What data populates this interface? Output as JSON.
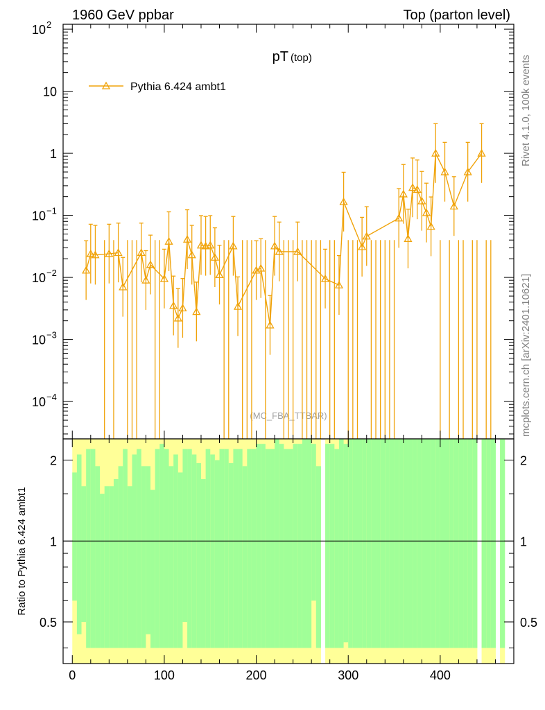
{
  "header": {
    "left": "1960 GeV ppbar",
    "right": "Top (parton level)"
  },
  "side": {
    "rivet": "Rivet 4.1.0,  100k events",
    "mcplots": "mcplots.cern.ch [arXiv:2401.10621]"
  },
  "chart_data": [
    {
      "type": "line",
      "title": "pT",
      "title_sub": "(top)",
      "watermark": "(MC_FBA_TTBAR)",
      "yscale": "log",
      "ylim": [
        2.5e-05,
        120
      ],
      "xlim": [
        -10,
        480
      ],
      "y_ticks": [
        {
          "v": 0.0001,
          "base": "10",
          "exp": "−4"
        },
        {
          "v": 0.001,
          "base": "10",
          "exp": "−3"
        },
        {
          "v": 0.01,
          "base": "10",
          "exp": "−2"
        },
        {
          "v": 0.1,
          "base": "10",
          "exp": "−1"
        },
        {
          "v": 1,
          "base": "1",
          "exp": ""
        },
        {
          "v": 10,
          "base": "10",
          "exp": ""
        },
        {
          "v": 100,
          "base": "10",
          "exp": "2"
        }
      ],
      "legend": "Pythia 6.424 ambt1",
      "color": "#f0a30a",
      "series": [
        {
          "name": "Pythia 6.424 ambt1",
          "points": [
            [
              15,
              0.013
            ],
            [
              20,
              0.024
            ],
            [
              25,
              0.023
            ],
            [
              40,
              0.024
            ],
            [
              50,
              0.025
            ],
            [
              55,
              0.007
            ],
            [
              75,
              0.025
            ],
            [
              80,
              0.009
            ],
            [
              85,
              0.016
            ],
            [
              100,
              0.0095
            ],
            [
              105,
              0.038
            ],
            [
              110,
              0.0035
            ],
            [
              115,
              0.0022
            ],
            [
              120,
              0.0032
            ],
            [
              125,
              0.041
            ],
            [
              130,
              0.023
            ],
            [
              135,
              0.0028
            ],
            [
              140,
              0.033
            ],
            [
              145,
              0.032
            ],
            [
              150,
              0.033
            ],
            [
              155,
              0.021
            ],
            [
              160,
              0.011
            ],
            [
              175,
              0.032
            ],
            [
              180,
              0.0034
            ],
            [
              200,
              0.013
            ],
            [
              205,
              0.014
            ],
            [
              215,
              0.0017
            ],
            [
              220,
              0.032
            ],
            [
              225,
              0.026
            ],
            [
              245,
              0.026
            ],
            [
              275,
              0.0095
            ],
            [
              290,
              0.0075
            ],
            [
              295,
              0.165
            ],
            [
              315,
              0.031
            ],
            [
              320,
              0.046
            ],
            [
              355,
              0.09
            ],
            [
              360,
              0.22
            ],
            [
              365,
              0.042
            ],
            [
              370,
              0.28
            ],
            [
              375,
              0.26
            ],
            [
              380,
              0.17
            ],
            [
              385,
              0.11
            ],
            [
              390,
              0.066
            ],
            [
              395,
              1.0
            ],
            [
              405,
              0.5
            ],
            [
              415,
              0.14
            ],
            [
              430,
              0.5
            ],
            [
              445,
              1.0
            ]
          ],
          "drop_x": [
            35,
            45,
            60,
            65,
            70,
            90,
            95,
            165,
            170,
            185,
            190,
            195,
            210,
            230,
            235,
            240,
            250,
            255,
            260,
            265,
            270,
            280,
            285,
            300,
            305,
            310,
            325,
            330,
            335,
            340,
            345,
            350,
            400,
            410,
            420,
            425,
            435,
            440,
            450,
            455
          ]
        }
      ]
    },
    {
      "type": "bar",
      "ylabel": "Ratio to Pythia 6.424 ambt1",
      "xlim": [
        -10,
        480
      ],
      "ylim": [
        0.35,
        2.4
      ],
      "yscale": "log",
      "y_ticks": [
        {
          "v": 0.5,
          "label": "0.5"
        },
        {
          "v": 1,
          "label": "1"
        },
        {
          "v": 2,
          "label": "2"
        }
      ],
      "x_ticks": [
        {
          "v": 0,
          "label": "0"
        },
        {
          "v": 100,
          "label": "100"
        },
        {
          "v": 200,
          "label": "200"
        },
        {
          "v": 300,
          "label": "300"
        },
        {
          "v": 400,
          "label": "400"
        }
      ],
      "reference": 1,
      "bin_width": 5,
      "bin_start": 0,
      "green": "#a0ff98",
      "yellow": "#ffff98",
      "white_bins": [
        270,
        440,
        460
      ],
      "green_lo": [
        0.6,
        0.45,
        0.5,
        0.4,
        0.4,
        0.4,
        0.4,
        0.4,
        0.4,
        0.4,
        0.4,
        0.4,
        0.4,
        0.4,
        0.4,
        0.4,
        0.45,
        0.4,
        0.4,
        0.4,
        0.4,
        0.4,
        0.4,
        0.4,
        0.5,
        0.4,
        0.4,
        0.4,
        0.4,
        0.4,
        0.4,
        0.4,
        0.4,
        0.4,
        0.4,
        0.4,
        0.4,
        0.4,
        0.4,
        0.4,
        0.4,
        0.4,
        0.4,
        0.4,
        0.4,
        0.4,
        0.4,
        0.4,
        0.4,
        0.4,
        0.4,
        0.4,
        0.6,
        0.4,
        0.4,
        0.4,
        0.4,
        0.4,
        0.4,
        0.42,
        0.4,
        0.4,
        0.4,
        0.4,
        0.4,
        0.4,
        0.4,
        0.4,
        0.4,
        0.4,
        0.4,
        0.4,
        0.4,
        0.4,
        0.4,
        0.4,
        0.4,
        0.4,
        0.4,
        0.4,
        0.4,
        0.4,
        0.4,
        0.4,
        0.4,
        0.4,
        0.4,
        0.4,
        0.4,
        0.4,
        0.4,
        0.4,
        0.4,
        0.4
      ],
      "green_hi": [
        1.8,
        2.1,
        1.6,
        2.2,
        2.2,
        1.9,
        1.5,
        1.6,
        1.6,
        1.7,
        1.9,
        2.2,
        1.6,
        2.1,
        2.2,
        1.9,
        1.9,
        1.55,
        2.2,
        2.3,
        2.2,
        1.9,
        2.1,
        1.8,
        2.2,
        2.2,
        2.1,
        1.95,
        1.7,
        2.2,
        2.1,
        2.0,
        2.2,
        2.2,
        1.95,
        2.2,
        2.2,
        1.9,
        2.2,
        2.2,
        2.3,
        2.3,
        2.2,
        2.2,
        2.4,
        2.3,
        2.2,
        2.2,
        2.3,
        2.3,
        2.4,
        2.4,
        2.3,
        1.9,
        2.4,
        2.3,
        2.3,
        2.2,
        2.4,
        2.3,
        2.4,
        2.4,
        2.4,
        2.4,
        2.4,
        2.4,
        2.4,
        2.4,
        2.4,
        2.4,
        2.4,
        2.4,
        2.4,
        2.4,
        2.4,
        2.4,
        2.4,
        2.4,
        2.4,
        2.4,
        2.4,
        2.4,
        2.4,
        2.4,
        2.4,
        2.4,
        2.4,
        2.4,
        2.4,
        2.4,
        2.4,
        2.4,
        2.4,
        2.4
      ],
      "yellow_lo": [
        0.35,
        0.35,
        0.35,
        0.35,
        0.35,
        0.35,
        0.35,
        0.35,
        0.35,
        0.35,
        0.35,
        0.35,
        0.35,
        0.35,
        0.35,
        0.35,
        0.35,
        0.35,
        0.35,
        0.35,
        0.35,
        0.35,
        0.35,
        0.35,
        0.35,
        0.35,
        0.35,
        0.35,
        0.35,
        0.35,
        0.35,
        0.35,
        0.35,
        0.35,
        0.35,
        0.35,
        0.35,
        0.35,
        0.35,
        0.35,
        0.35,
        0.35,
        0.35,
        0.35,
        0.35,
        0.35,
        0.35,
        0.35,
        0.35,
        0.35,
        0.35,
        0.35,
        0.35,
        0.35,
        0.35,
        0.35,
        0.35,
        0.35,
        0.35,
        0.35,
        0.35,
        0.35,
        0.35,
        0.35,
        0.35,
        0.35,
        0.35,
        0.35,
        0.35,
        0.35,
        0.35,
        0.35,
        0.35,
        0.35,
        0.35,
        0.35,
        0.35,
        0.35,
        0.35,
        0.35,
        0.35,
        0.35,
        0.35,
        0.35,
        0.35,
        0.35,
        0.35,
        0.35,
        0.35,
        0.35,
        0.35,
        0.35,
        0.35,
        0.35
      ],
      "yellow_hi": [
        2.4,
        2.4,
        2.4,
        2.4,
        2.4,
        2.4,
        2.4,
        2.4,
        2.4,
        2.4,
        2.4,
        2.4,
        2.4,
        2.4,
        2.4,
        2.4,
        2.4,
        2.4,
        2.4,
        2.4,
        2.4,
        2.4,
        2.4,
        2.4,
        2.4,
        2.4,
        2.4,
        2.4,
        2.4,
        2.4,
        2.4,
        2.4,
        2.4,
        2.4,
        2.4,
        2.4,
        2.4,
        2.4,
        2.4,
        2.4,
        2.4,
        2.4,
        2.4,
        2.4,
        2.4,
        2.4,
        2.4,
        2.4,
        2.4,
        2.4,
        2.4,
        2.4,
        2.4,
        2.4,
        2.4,
        2.4,
        2.4,
        2.4,
        2.4,
        2.4,
        2.4,
        2.4,
        2.4,
        2.4,
        2.4,
        2.4,
        2.4,
        2.4,
        2.4,
        2.4,
        2.4,
        2.4,
        2.4,
        2.4,
        2.4,
        2.4,
        2.4,
        2.4,
        2.4,
        2.4,
        2.4,
        2.4,
        2.4,
        2.4,
        2.4,
        2.4,
        2.4,
        2.4,
        2.4,
        2.4,
        2.4,
        2.4,
        2.4,
        2.4
      ]
    }
  ]
}
